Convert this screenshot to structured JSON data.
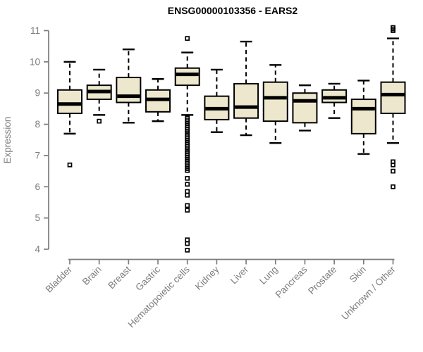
{
  "chart_data": {
    "type": "boxplot",
    "title": "ENSG00000103356 - EARS2",
    "ylabel": "Expression",
    "xlabel": "",
    "ylim": [
      4,
      11
    ],
    "yticks": [
      4,
      5,
      6,
      7,
      8,
      9,
      10,
      11
    ],
    "grid": false,
    "legend": "none",
    "colors": {
      "box_fill": "#EDE8CD",
      "box_stroke": "#000000",
      "median": "#000000",
      "axis": "#7d7d7d",
      "title": "#000000"
    },
    "categories": [
      "Bladder",
      "Brain",
      "Breast",
      "Gastric",
      "Hematopoietic cells",
      "Kidney",
      "Liver",
      "Lung",
      "Pancreas",
      "Prostate",
      "Skin",
      "Unknown / Other"
    ],
    "series": [
      {
        "category": "Bladder",
        "low": 7.7,
        "q1": 8.35,
        "median": 8.65,
        "q3": 9.1,
        "high": 10.0,
        "outliers": [
          6.7
        ]
      },
      {
        "category": "Brain",
        "low": 8.3,
        "q1": 8.8,
        "median": 9.05,
        "q3": 9.25,
        "high": 9.75,
        "outliers": [
          8.1
        ]
      },
      {
        "category": "Breast",
        "low": 8.05,
        "q1": 8.7,
        "median": 8.9,
        "q3": 9.5,
        "high": 10.4,
        "outliers": []
      },
      {
        "category": "Gastric",
        "low": 8.1,
        "q1": 8.4,
        "median": 8.8,
        "q3": 9.1,
        "high": 9.45,
        "outliers": []
      },
      {
        "category": "Hematopoietic cells",
        "low": 8.3,
        "q1": 9.25,
        "median": 9.6,
        "q3": 9.8,
        "high": 10.3,
        "outliers": [
          10.75,
          8.2,
          8.14,
          8.08,
          8.02,
          7.96,
          7.9,
          7.84,
          7.78,
          7.72,
          7.66,
          7.6,
          7.54,
          7.48,
          7.42,
          7.36,
          7.3,
          7.24,
          7.18,
          7.12,
          7.06,
          7.0,
          6.94,
          6.88,
          6.82,
          6.76,
          6.7,
          6.64,
          6.58,
          6.52,
          6.27,
          6.08,
          5.85,
          5.73,
          5.4,
          5.25,
          4.3,
          4.18,
          3.97
        ]
      },
      {
        "category": "Kidney",
        "low": 7.75,
        "q1": 8.15,
        "median": 8.5,
        "q3": 8.9,
        "high": 9.75,
        "outliers": []
      },
      {
        "category": "Liver",
        "low": 7.65,
        "q1": 8.2,
        "median": 8.55,
        "q3": 9.3,
        "high": 10.65,
        "outliers": []
      },
      {
        "category": "Lung",
        "low": 7.4,
        "q1": 8.1,
        "median": 8.85,
        "q3": 9.35,
        "high": 9.9,
        "outliers": []
      },
      {
        "category": "Pancreas",
        "low": 7.8,
        "q1": 8.05,
        "median": 8.75,
        "q3": 9.0,
        "high": 9.25,
        "outliers": []
      },
      {
        "category": "Prostate",
        "low": 8.2,
        "q1": 8.7,
        "median": 8.85,
        "q3": 9.1,
        "high": 9.3,
        "outliers": []
      },
      {
        "category": "Skin",
        "low": 7.05,
        "q1": 7.7,
        "median": 8.5,
        "q3": 8.8,
        "high": 9.4,
        "outliers": []
      },
      {
        "category": "Unknown / Other",
        "low": 7.4,
        "q1": 8.35,
        "median": 8.95,
        "q3": 9.35,
        "high": 10.75,
        "outliers": [
          11.1,
          11.05,
          11.0,
          6.8,
          6.7,
          6.5,
          6.0
        ]
      }
    ]
  }
}
